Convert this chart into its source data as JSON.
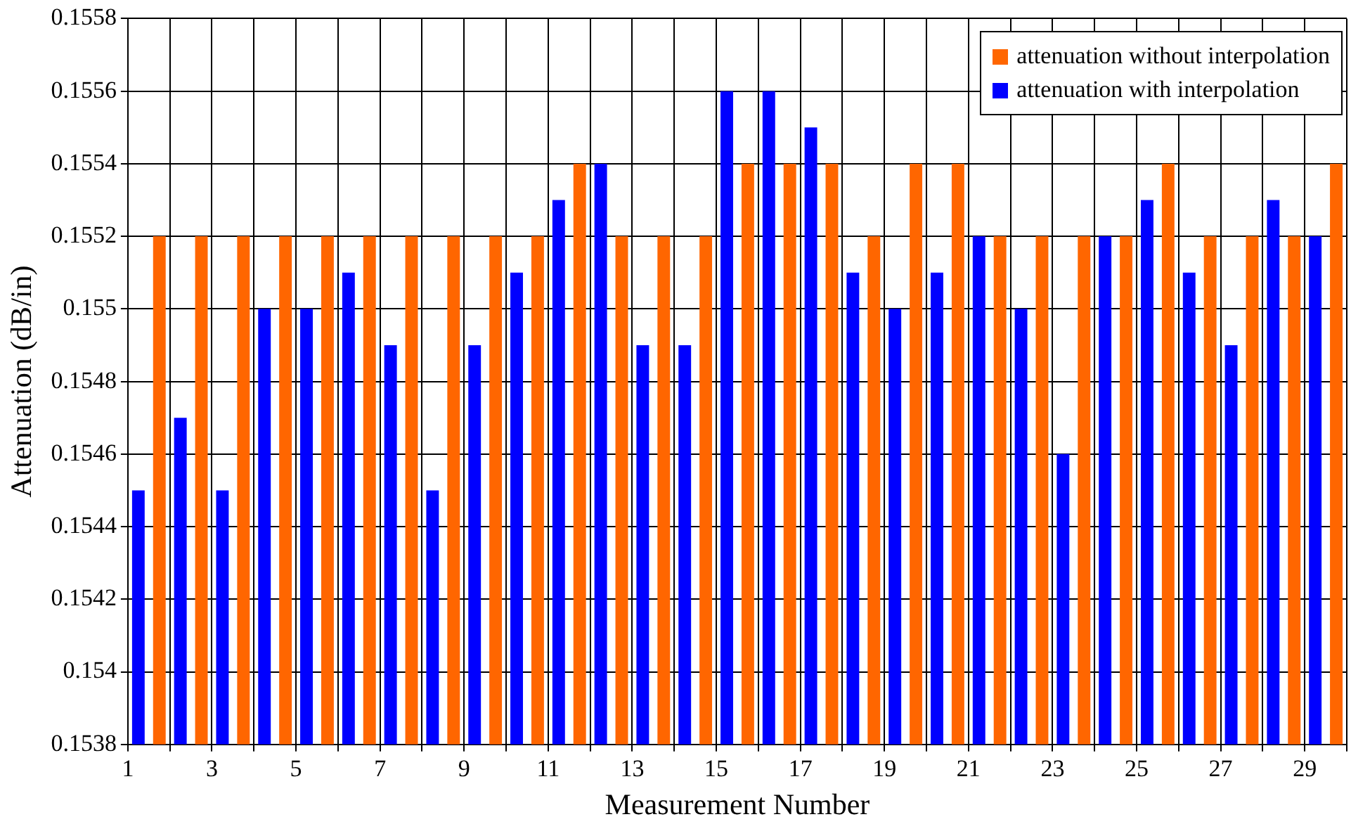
{
  "chart_data": {
    "type": "bar",
    "xlabel": "Measurement Number",
    "ylabel": "Attenuation (dB/in)",
    "x": [
      1,
      2,
      3,
      4,
      5,
      6,
      7,
      8,
      9,
      10,
      11,
      12,
      13,
      14,
      15,
      16,
      17,
      18,
      19,
      20,
      21,
      22,
      23,
      24,
      25,
      26,
      27,
      28,
      29,
      30
    ],
    "series": [
      {
        "name": "attenuation without interpolation",
        "color": "#ff6600",
        "values": [
          null,
          0.1552,
          0.1552,
          0.1552,
          0.1552,
          0.1552,
          0.1552,
          0.1552,
          0.1552,
          0.1552,
          0.1552,
          0.1554,
          0.1552,
          0.1552,
          0.1552,
          0.1554,
          0.1554,
          0.1554,
          0.1552,
          0.1554,
          0.1554,
          0.1552,
          0.1552,
          0.1552,
          0.1552,
          0.1554,
          0.1552,
          0.1552,
          0.1552,
          0.1554
        ]
      },
      {
        "name": "attenuation with interpolation",
        "color": "#0000ff",
        "values": [
          0.1545,
          0.1547,
          0.1545,
          0.155,
          0.155,
          0.1551,
          0.1549,
          0.1545,
          0.1549,
          0.1551,
          0.1553,
          0.1554,
          0.1549,
          0.1549,
          0.1556,
          0.1556,
          0.1555,
          0.1551,
          0.155,
          0.1551,
          0.1552,
          0.155,
          0.1546,
          0.1552,
          0.1553,
          0.1551,
          0.1549,
          0.1553,
          0.1552,
          null
        ]
      }
    ],
    "xlim": [
      1,
      30
    ],
    "xticks": [
      1,
      {
        "value": 2,
        "label": null
      },
      3,
      {
        "value": 4,
        "label": null
      },
      5,
      {
        "value": 6,
        "label": null
      },
      7,
      {
        "value": 8,
        "label": null
      },
      9,
      {
        "value": 10,
        "label": null
      },
      11,
      {
        "value": 12,
        "label": null
      },
      13,
      {
        "value": 14,
        "label": null
      },
      15,
      {
        "value": 16,
        "label": null
      },
      17,
      {
        "value": 18,
        "label": null
      },
      19,
      {
        "value": 20,
        "label": null
      },
      21,
      {
        "value": 22,
        "label": null
      },
      23,
      {
        "value": 24,
        "label": null
      },
      25,
      {
        "value": 26,
        "label": null
      },
      27,
      {
        "value": 28,
        "label": null
      },
      29,
      {
        "value": 30,
        "label": null
      }
    ],
    "ylim": [
      0.1538,
      0.1558
    ],
    "yticks": [
      0.1538,
      0.154,
      0.1542,
      0.1544,
      0.1546,
      0.1548,
      0.155,
      0.1552,
      0.1554,
      0.1556,
      0.1558
    ],
    "grid": true,
    "legend": "top right"
  }
}
